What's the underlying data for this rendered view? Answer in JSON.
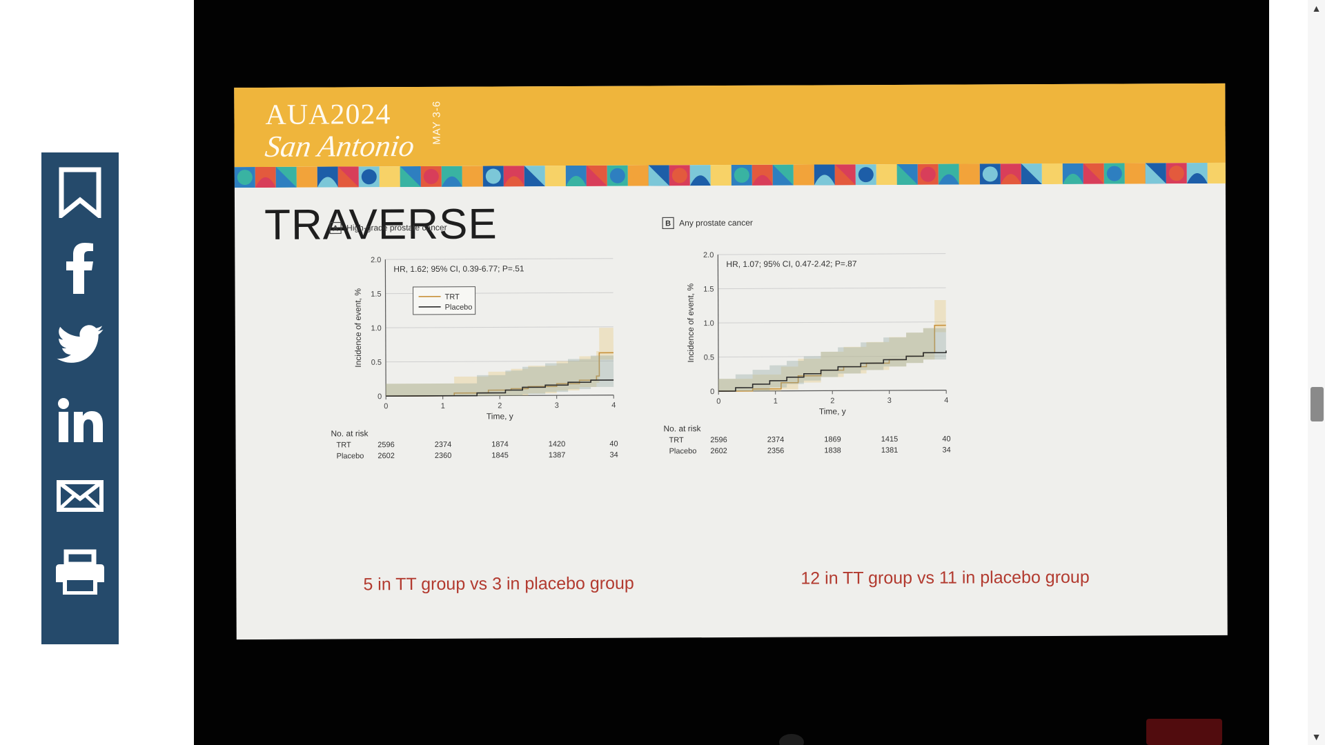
{
  "share_bar": {
    "color": "#254a6b",
    "items": [
      {
        "name": "bookmark",
        "icon": "bookmark-icon"
      },
      {
        "name": "facebook",
        "icon": "facebook-icon"
      },
      {
        "name": "twitter",
        "icon": "twitter-icon"
      },
      {
        "name": "linkedin",
        "icon": "linkedin-icon"
      },
      {
        "name": "email",
        "icon": "envelope-icon"
      },
      {
        "name": "print",
        "icon": "printer-icon"
      }
    ]
  },
  "slide": {
    "logo_main": "AUA2024",
    "logo_sub": "San Antonio",
    "logo_dates": "MAY 3-6",
    "title": "TRAVERSE",
    "header_color": "#efb53c"
  },
  "chart_data": [
    {
      "type": "line",
      "panel_label": "A",
      "title": "High-grade prostate cancer",
      "annotation": "HR, 1.62; 95% CI, 0.39-6.77; P=.51",
      "xlabel": "Time, y",
      "ylabel": "Incidence of event, %",
      "xlim": [
        0,
        4
      ],
      "ylim": [
        0,
        2.0
      ],
      "x_ticks": [
        "0",
        "1",
        "2",
        "3",
        "4"
      ],
      "y_ticks": [
        "0",
        "0.5",
        "1.0",
        "1.5",
        "2.0"
      ],
      "legend": [
        "TRT",
        "Placebo"
      ],
      "series": [
        {
          "name": "TRT",
          "color": "#c8913a",
          "steps": [
            [
              0,
              0
            ],
            [
              1.2,
              0.04
            ],
            [
              1.8,
              0.08
            ],
            [
              2.2,
              0.1
            ],
            [
              2.5,
              0.13
            ],
            [
              3.0,
              0.17
            ],
            [
              3.4,
              0.22
            ],
            [
              3.7,
              0.28
            ],
            [
              3.75,
              0.62
            ],
            [
              4.0,
              0.62
            ]
          ]
        },
        {
          "name": "Placebo",
          "color": "#2a2a2a",
          "steps": [
            [
              0,
              0
            ],
            [
              1.6,
              0.04
            ],
            [
              2.1,
              0.08
            ],
            [
              2.4,
              0.12
            ],
            [
              2.8,
              0.15
            ],
            [
              3.2,
              0.19
            ],
            [
              3.6,
              0.22
            ],
            [
              4.0,
              0.22
            ]
          ]
        }
      ],
      "risk_table": {
        "label": "No. at risk",
        "rows": [
          {
            "group": "TRT",
            "values": [
              "2596",
              "2374",
              "1874",
              "1420",
              "40"
            ]
          },
          {
            "group": "Placebo",
            "values": [
              "2602",
              "2360",
              "1845",
              "1387",
              "34"
            ]
          }
        ]
      },
      "caption": "5 in TT group vs 3 in placebo group"
    },
    {
      "type": "line",
      "panel_label": "B",
      "title": "Any prostate cancer",
      "annotation": "HR, 1.07; 95% CI, 0.47-2.42; P=.87",
      "xlabel": "Time, y",
      "ylabel": "Incidence of event, %",
      "xlim": [
        0,
        4
      ],
      "ylim": [
        0,
        2.0
      ],
      "x_ticks": [
        "0",
        "1",
        "2",
        "3",
        "4"
      ],
      "y_ticks": [
        "0",
        "0.5",
        "1.0",
        "1.5",
        "2.0"
      ],
      "series": [
        {
          "name": "TRT",
          "color": "#c8913a",
          "steps": [
            [
              0,
              0
            ],
            [
              0.6,
              0.03
            ],
            [
              1.1,
              0.12
            ],
            [
              1.4,
              0.22
            ],
            [
              1.8,
              0.3
            ],
            [
              2.2,
              0.35
            ],
            [
              2.6,
              0.4
            ],
            [
              3.0,
              0.45
            ],
            [
              3.3,
              0.5
            ],
            [
              3.6,
              0.55
            ],
            [
              3.8,
              0.95
            ],
            [
              4.0,
              0.95
            ]
          ]
        },
        {
          "name": "Placebo",
          "color": "#2a2a2a",
          "steps": [
            [
              0,
              0
            ],
            [
              0.3,
              0.05
            ],
            [
              0.6,
              0.1
            ],
            [
              0.9,
              0.15
            ],
            [
              1.2,
              0.2
            ],
            [
              1.5,
              0.25
            ],
            [
              1.8,
              0.3
            ],
            [
              2.1,
              0.35
            ],
            [
              2.5,
              0.4
            ],
            [
              2.9,
              0.45
            ],
            [
              3.3,
              0.5
            ],
            [
              3.6,
              0.55
            ],
            [
              4.0,
              0.58
            ]
          ]
        }
      ],
      "risk_table": {
        "label": "No. at risk",
        "rows": [
          {
            "group": "TRT",
            "values": [
              "2596",
              "2374",
              "1869",
              "1415",
              "40"
            ]
          },
          {
            "group": "Placebo",
            "values": [
              "2602",
              "2356",
              "1838",
              "1381",
              "34"
            ]
          }
        ]
      },
      "caption": "12 in TT group vs 11 in placebo group"
    }
  ],
  "scrollbar": {
    "up_arrow": "▲",
    "down_arrow": "▼"
  }
}
